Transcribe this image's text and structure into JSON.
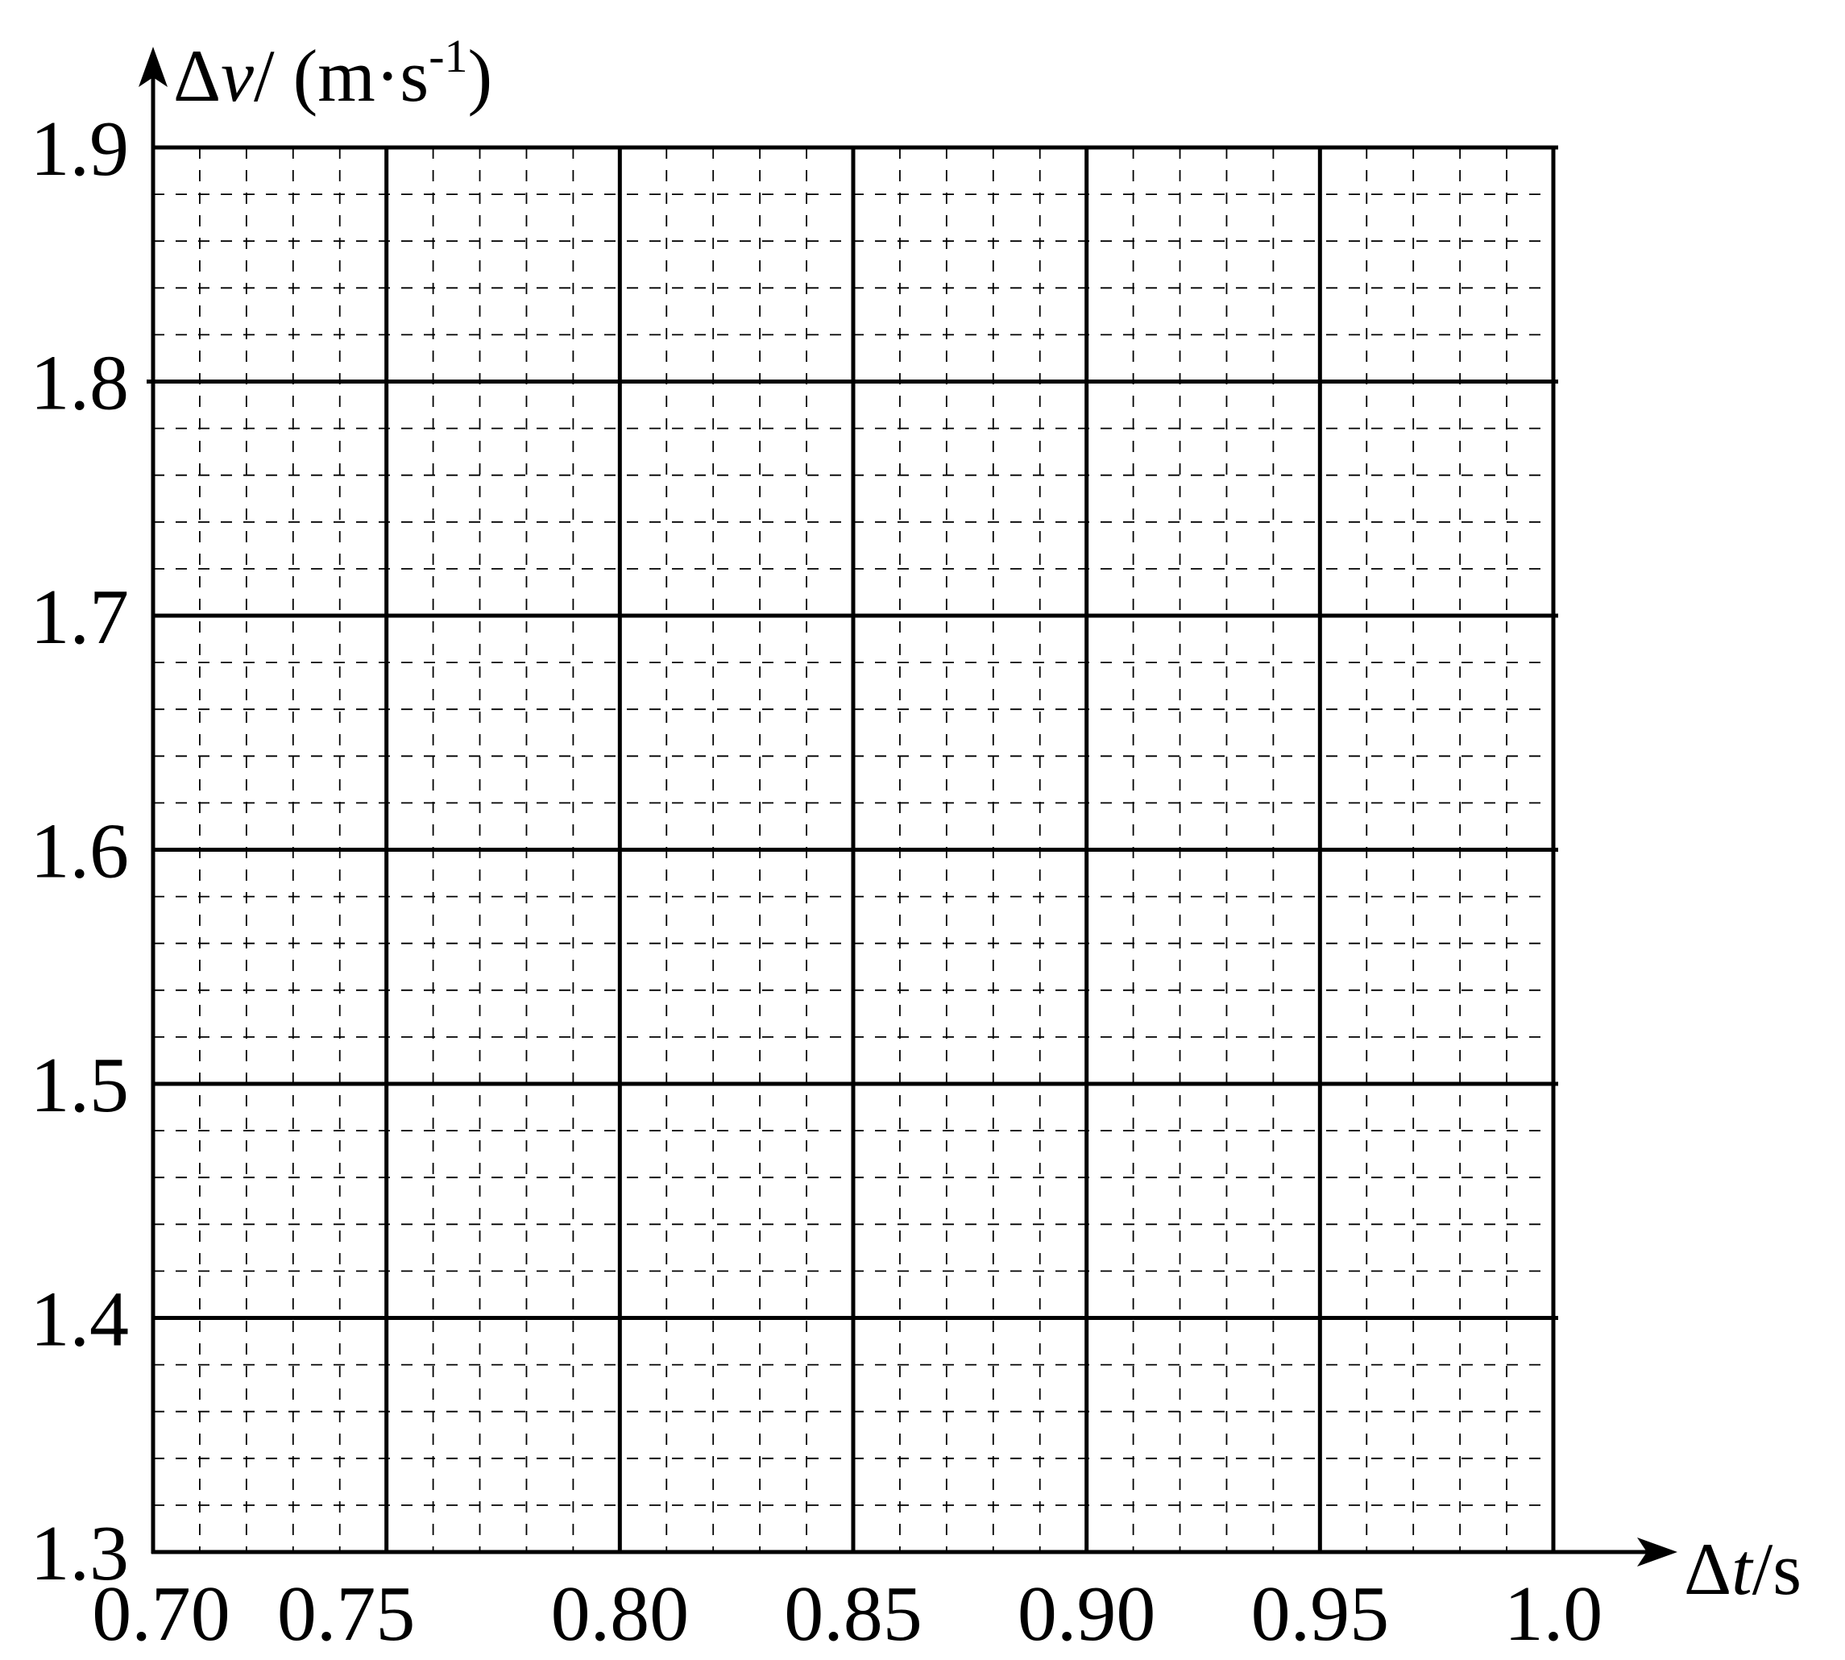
{
  "chart_data": {
    "type": "scatter",
    "title": "",
    "x_axis": {
      "label_prefix": "Δ",
      "label_var": "t",
      "label_unit": "/s",
      "range": [
        0.7,
        1.0
      ],
      "ticks": [
        0.7,
        0.75,
        0.8,
        0.85,
        0.9,
        0.95,
        1.0
      ],
      "tick_labels": [
        "0.70",
        "0.75",
        "0.80",
        "0.85",
        "0.90",
        "0.95",
        "1.0"
      ],
      "minor_step": 0.01
    },
    "y_axis": {
      "label_prefix": "Δ",
      "label_var": "v",
      "label_unit": "/ (m·s",
      "label_sup": "-1",
      "label_close": ")",
      "range": [
        1.3,
        1.9
      ],
      "ticks": [
        1.3,
        1.4,
        1.5,
        1.6,
        1.7,
        1.8,
        1.9
      ],
      "tick_labels": [
        "1.3",
        "1.4",
        "1.5",
        "1.6",
        "1.7",
        "1.8",
        "1.9"
      ],
      "minor_step": 0.02
    },
    "grid": {
      "major": true,
      "minor": true,
      "minor_style": "dashed"
    },
    "series": []
  }
}
